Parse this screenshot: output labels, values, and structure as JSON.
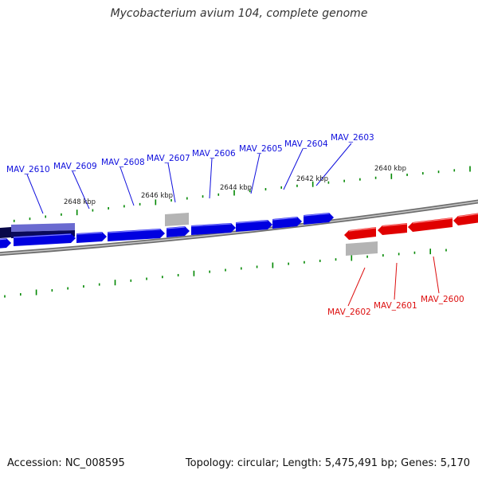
{
  "title": "Mycobacterium avium 104, complete genome",
  "footer": {
    "accession": "Accession: NC_008595",
    "summary": "Topology: circular; Length: 5,475,491 bp; Genes: 5,170"
  },
  "colors": {
    "forward_gene": "#0000e0",
    "reverse_gene": "#e00000",
    "pseudo_gene": "#b0b0b0",
    "highlight_gene": "#6a6ad0",
    "backbone": "#808080",
    "ticks": "#008800",
    "forward_label": "#1010dd",
    "reverse_label": "#dd1010"
  },
  "ruler": [
    {
      "label": "2648 kbp"
    },
    {
      "label": "2646 kbp"
    },
    {
      "label": "2644 kbp"
    },
    {
      "label": "2642 kbp"
    },
    {
      "label": "2640 kbp"
    }
  ],
  "forward_genes": [
    {
      "name": "MAV_2610"
    },
    {
      "name": "MAV_2609"
    },
    {
      "name": "MAV_2608"
    },
    {
      "name": "MAV_2607"
    },
    {
      "name": "MAV_2606"
    },
    {
      "name": "MAV_2605"
    },
    {
      "name": "MAV_2604"
    },
    {
      "name": "MAV_2603"
    }
  ],
  "reverse_genes": [
    {
      "name": "MAV_2602"
    },
    {
      "name": "MAV_2601"
    },
    {
      "name": "MAV_2600"
    }
  ]
}
